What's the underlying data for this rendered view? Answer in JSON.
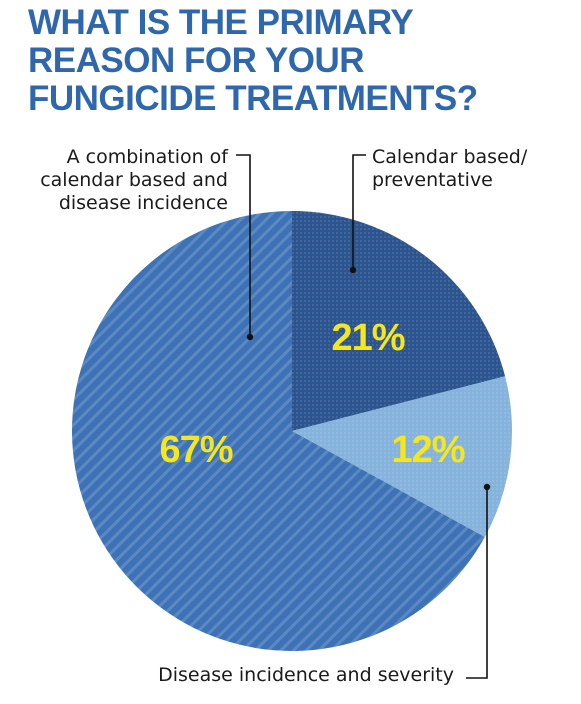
{
  "title_lines": [
    "WHAT IS THE PRIMARY",
    "REASON FOR YOUR",
    "FUNGICIDE TREATMENTS?"
  ],
  "colors": {
    "title": "#2f67ad",
    "combination": "#3d72b6",
    "calendar": "#2c5590",
    "disease": "#85b3dc",
    "percent_text": "#f5e61e"
  },
  "chart_data": {
    "type": "pie",
    "title": "WHAT IS THE PRIMARY REASON FOR YOUR FUNGICIDE TREATMENTS?",
    "slices": [
      {
        "key": "calendar",
        "label_lines": [
          "Calendar based/",
          "preventative"
        ],
        "value": 21,
        "value_label": "21%",
        "color": "#2c5590"
      },
      {
        "key": "disease",
        "label_lines": [
          "Disease incidence and severity"
        ],
        "value": 12,
        "value_label": "12%",
        "color": "#85b3dc"
      },
      {
        "key": "combination",
        "label_lines": [
          "A combination of",
          "calendar based and",
          "disease incidence"
        ],
        "value": 67,
        "value_label": "67%",
        "color": "#3d72b6"
      }
    ]
  }
}
